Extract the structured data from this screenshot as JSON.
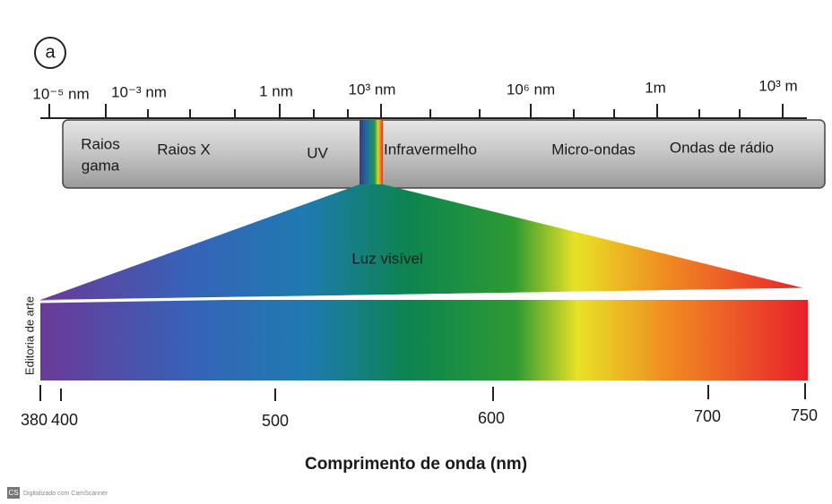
{
  "label": "a",
  "top_scale": {
    "ticks": [
      "10⁻⁵ nm",
      "10⁻³ nm",
      "1 nm",
      "10³ nm",
      "10⁶ nm",
      "1m",
      "10³ m"
    ]
  },
  "bands": [
    {
      "lines": [
        "Raios",
        "gama"
      ]
    },
    {
      "lines": [
        "Raios X"
      ]
    },
    {
      "lines": [
        "UV"
      ]
    },
    {
      "lines": [
        "Infravermelho"
      ]
    },
    {
      "lines": [
        "Micro-ondas"
      ]
    },
    {
      "lines": [
        "Ondas de rádio"
      ]
    }
  ],
  "visible_label": "Luz visível",
  "credit": "Editoria de arte",
  "bottom_scale": {
    "ticks": [
      380,
      400,
      500,
      600,
      700,
      750
    ],
    "title": "Comprimento de onda (nm)"
  },
  "footer": {
    "icon": "CS",
    "text": "Digitalizado com CamScanner"
  }
}
